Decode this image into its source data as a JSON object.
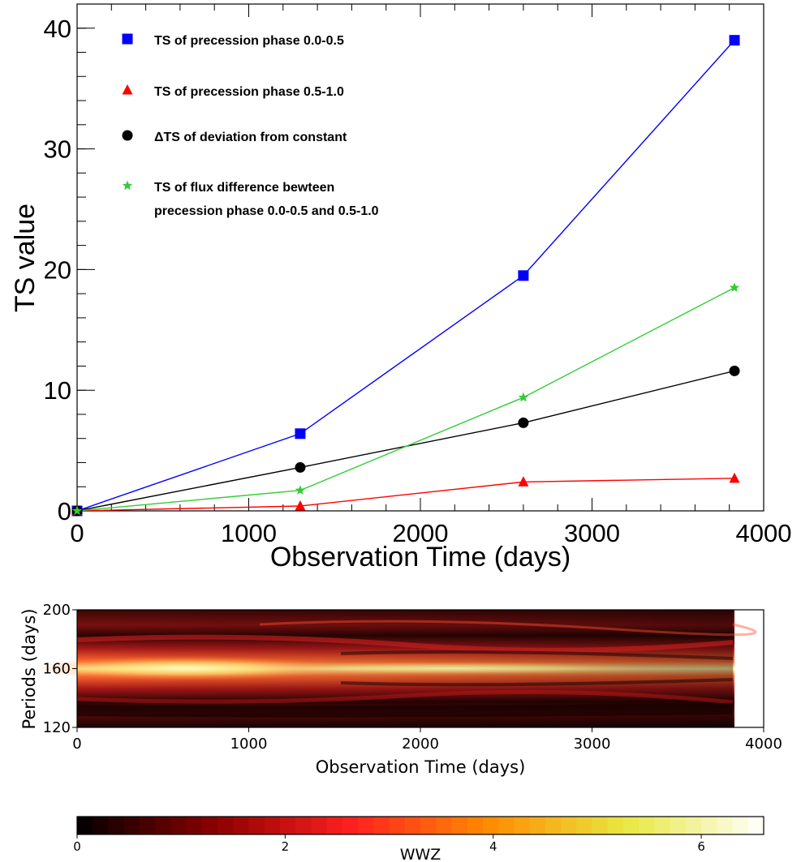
{
  "chart_data": [
    {
      "type": "line",
      "xlabel": "Observation Time (days)",
      "ylabel": "TS value",
      "xlim": [
        0,
        4000
      ],
      "ylim": [
        0,
        42
      ],
      "x_ticks": [
        "0",
        "1000",
        "2000",
        "3000",
        "4000"
      ],
      "y_ticks": [
        "0",
        "10",
        "20",
        "30",
        "40"
      ],
      "x": [
        0,
        1300,
        2600,
        3830
      ],
      "legend_position": "top-left",
      "grid": false,
      "series": [
        {
          "name": "TS of precession phase 0.0-0.5",
          "name_line2": "",
          "values": [
            0,
            6.4,
            19.5,
            39.0
          ],
          "color": "#0000ff",
          "marker": "square"
        },
        {
          "name": "TS of precession phase 0.5-1.0",
          "name_line2": "",
          "values": [
            0,
            0.4,
            2.4,
            2.7
          ],
          "color": "#ff0000",
          "marker": "triangle"
        },
        {
          "name": "ΔTS of deviation from constant",
          "name_line2": "",
          "values": [
            0,
            3.6,
            7.3,
            11.6
          ],
          "color": "#000000",
          "marker": "circle"
        },
        {
          "name": "TS of flux difference bewteen",
          "name_line2": "precession phase 0.0-0.5 and 0.5-1.0",
          "values": [
            0,
            1.7,
            9.4,
            18.5
          ],
          "color": "#33cc33",
          "marker": "star"
        }
      ]
    },
    {
      "type": "heatmap",
      "xlabel": "Observation Time (days)",
      "ylabel": "Periods (days)",
      "xlim": [
        0,
        4000
      ],
      "ylim": [
        120,
        200
      ],
      "x_ticks": [
        "0",
        "1000",
        "2000",
        "3000",
        "4000"
      ],
      "y_ticks": [
        "120",
        "160",
        "200"
      ],
      "data_x_extent": [
        0,
        3830
      ],
      "peak_period": 160,
      "colorbar": {
        "label": "WWZ",
        "range": [
          0,
          6.6
        ],
        "ticks": [
          "0",
          "2",
          "4",
          "6"
        ],
        "colors": [
          "#000000",
          "#8b0000",
          "#ff2020",
          "#ff8c00",
          "#e8e840",
          "#ffffff"
        ]
      }
    }
  ]
}
